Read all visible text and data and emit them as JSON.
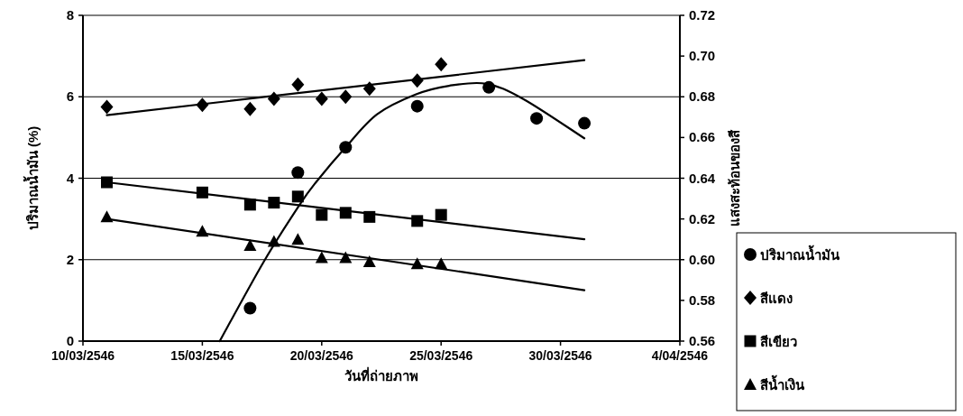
{
  "chart_data": {
    "type": "scatter",
    "xlabel": "วันที่ถ่ายภาพ",
    "ylabel": "ปริมาณน้ำมัน (%)",
    "y2label": "แสงสะท้อนของสี",
    "xlim": [
      "2546-03-10",
      "2546-04-04"
    ],
    "xticks": [
      {
        "value": "2546-03-10",
        "label": "10/03/2546"
      },
      {
        "value": "2546-03-15",
        "label": "15/03/2546"
      },
      {
        "value": "2546-03-20",
        "label": "20/03/2546"
      },
      {
        "value": "2546-03-25",
        "label": "25/03/2546"
      },
      {
        "value": "2546-03-30",
        "label": "30/03/2546"
      },
      {
        "value": "2546-04-04",
        "label": "4/04/2546"
      }
    ],
    "ylim": [
      0,
      8
    ],
    "yticks": [
      0,
      2,
      4,
      6,
      8
    ],
    "y2lim": [
      0.56,
      0.72
    ],
    "y2ticks": [
      0.56,
      0.58,
      {
        "value": 0.6,
        "label": "0.60"
      },
      0.62,
      0.64,
      0.66,
      0.68,
      {
        "value": 0.7,
        "label": "0.70"
      },
      0.72
    ],
    "grid": "y",
    "legend": "right",
    "series": [
      {
        "name": "ปริมาณน้ำมัน",
        "marker": "circle",
        "color": "#000000",
        "x": [
          "2546-03-17",
          "2546-03-19",
          "2546-03-21",
          "2546-03-24",
          "2546-03-27",
          "2546-03-29",
          "2546-03-31"
        ],
        "values": [
          0.81,
          4.14,
          4.76,
          5.77,
          6.23,
          5.47,
          5.35
        ]
      },
      {
        "name": "สีแดง",
        "marker": "diamond",
        "axis": "y2",
        "color": "#000000",
        "x": [
          "2546-03-11",
          "2546-03-15",
          "2546-03-17",
          "2546-03-18",
          "2546-03-19",
          "2546-03-20",
          "2546-03-21",
          "2546-03-22",
          "2546-03-24",
          "2546-03-25"
        ],
        "values": [
          0.675,
          0.676,
          0.674,
          0.679,
          0.686,
          0.679,
          0.68,
          0.684,
          0.688,
          0.696
        ]
      },
      {
        "name": "สีเขียว",
        "marker": "square",
        "axis": "y2",
        "color": "#000000",
        "x": [
          "2546-03-11",
          "2546-03-15",
          "2546-03-17",
          "2546-03-18",
          "2546-03-19",
          "2546-03-20",
          "2546-03-21",
          "2546-03-22",
          "2546-03-24",
          "2546-03-25"
        ],
        "values": [
          0.638,
          0.633,
          0.627,
          0.628,
          0.631,
          0.622,
          0.623,
          0.621,
          0.619,
          0.622
        ]
      },
      {
        "name": "สีน้ำเงิน",
        "marker": "triangle",
        "axis": "y2",
        "color": "#000000",
        "x": [
          "2546-03-11",
          "2546-03-15",
          "2546-03-17",
          "2546-03-18",
          "2546-03-19",
          "2546-03-20",
          "2546-03-21",
          "2546-03-22",
          "2546-03-24",
          "2546-03-25"
        ],
        "values": [
          0.621,
          0.614,
          0.607,
          0.609,
          0.61,
          0.601,
          0.601,
          0.599,
          0.598,
          0.598
        ]
      },
      {
        "type": "line",
        "marker": "none",
        "line_style": "solid",
        "color": "#000000",
        "x": [
          "2546-03-15T17:30",
          "2546-03-17T13:30",
          "2546-03-19T01:30",
          "2546-03-19T19:30",
          "2546-03-21T00:00",
          "2546-03-22T07:40",
          "2546-03-23T22:50",
          "2546-03-25T08:00",
          "2546-03-26T21:30",
          "2546-03-28T11:00",
          "2546-03-31T00:00"
        ],
        "values": [
          0,
          1.94,
          3.34,
          3.94,
          4.76,
          5.57,
          6.06,
          6.27,
          6.32,
          5.94,
          4.98
        ]
      },
      {
        "type": "line",
        "marker": "none",
        "line_style": "solid",
        "axis": "y2",
        "color": "#000000",
        "x": [
          "2546-03-11",
          "2546-03-31"
        ],
        "values": [
          0.671,
          0.698
        ]
      },
      {
        "type": "line",
        "marker": "none",
        "line_style": "solid",
        "axis": "y2",
        "color": "#000000",
        "x": [
          "2546-03-11",
          "2546-03-31"
        ],
        "values": [
          0.638,
          0.61
        ]
      },
      {
        "type": "line",
        "marker": "none",
        "line_style": "solid",
        "axis": "y2",
        "color": "#000000",
        "x": [
          "2546-03-11",
          "2546-03-31"
        ],
        "values": [
          0.62,
          0.585
        ]
      }
    ]
  }
}
